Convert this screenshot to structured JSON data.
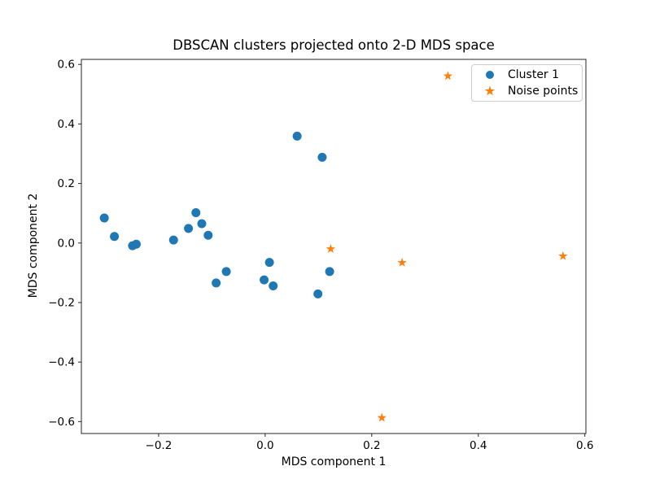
{
  "chart_data": {
    "type": "scatter",
    "title": "DBSCAN clusters projected onto 2-D MDS space",
    "xlabel": "MDS component 1",
    "ylabel": "MDS component 2",
    "xlim": [
      -0.345,
      0.602
    ],
    "ylim": [
      -0.64,
      0.617
    ],
    "xticks": [
      -0.2,
      0.0,
      0.2,
      0.4,
      0.6
    ],
    "yticks": [
      -0.6,
      -0.4,
      -0.2,
      0.0,
      0.2,
      0.4,
      0.6
    ],
    "grid": false,
    "legend_position": "upper right",
    "series": [
      {
        "name": "Cluster 1",
        "marker": "circle",
        "color": "#1f77b4",
        "points": [
          [
            -0.302,
            0.084
          ],
          [
            -0.283,
            0.022
          ],
          [
            -0.249,
            -0.009
          ],
          [
            -0.242,
            -0.004
          ],
          [
            -0.172,
            0.01
          ],
          [
            -0.144,
            0.049
          ],
          [
            -0.13,
            0.102
          ],
          [
            -0.119,
            0.065
          ],
          [
            -0.107,
            0.026
          ],
          [
            -0.092,
            -0.134
          ],
          [
            -0.073,
            -0.096
          ],
          [
            -0.002,
            -0.124
          ],
          [
            0.008,
            -0.065
          ],
          [
            0.015,
            -0.144
          ],
          [
            0.06,
            0.359
          ],
          [
            0.107,
            0.288
          ],
          [
            0.099,
            -0.171
          ],
          [
            0.121,
            -0.096
          ]
        ]
      },
      {
        "name": "Noise points",
        "marker": "star",
        "color": "#ff7f0e",
        "points": [
          [
            0.123,
            -0.02
          ],
          [
            0.219,
            -0.587
          ],
          [
            0.257,
            -0.066
          ],
          [
            0.343,
            0.561
          ],
          [
            0.559,
            -0.044
          ]
        ]
      }
    ]
  },
  "legend": {
    "items": [
      {
        "label": "Cluster 1"
      },
      {
        "label": "Noise points"
      }
    ]
  }
}
